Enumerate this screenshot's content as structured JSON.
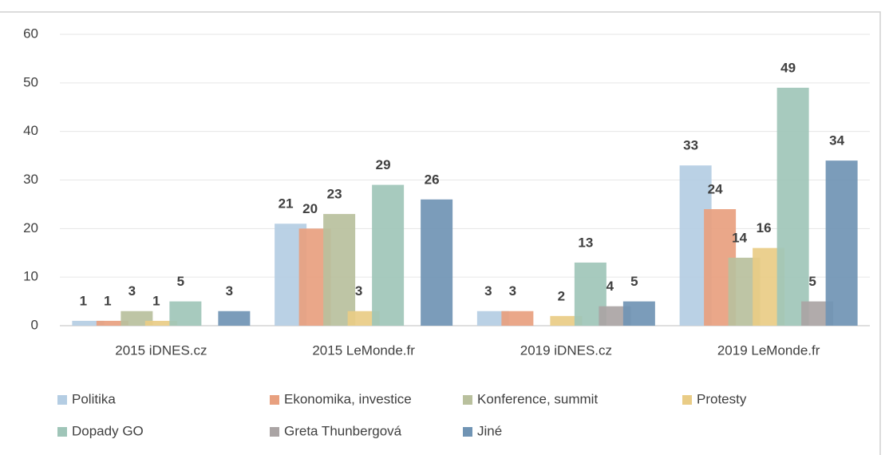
{
  "chart_data": {
    "type": "bar",
    "categories": [
      "2015 iDNES.cz",
      "2015 LeMonde.fr",
      "2019 iDNES.cz",
      "2019 LeMonde.fr"
    ],
    "series": [
      {
        "name": "Politika",
        "color": "#b4cde3",
        "values": [
          1,
          21,
          3,
          33
        ]
      },
      {
        "name": "Ekonomika, investice",
        "color": "#e8a07f",
        "values": [
          1,
          20,
          3,
          24
        ]
      },
      {
        "name": "Konference, summit",
        "color": "#b9c09d",
        "values": [
          3,
          23,
          null,
          14
        ]
      },
      {
        "name": "Protesty",
        "color": "#e9cc86",
        "values": [
          1,
          3,
          2,
          16
        ]
      },
      {
        "name": "Dopady GO",
        "color": "#9fc5b8",
        "values": [
          5,
          29,
          13,
          49
        ]
      },
      {
        "name": "Greta Thunbergová",
        "color": "#aaa4a4",
        "values": [
          null,
          null,
          4,
          5
        ]
      },
      {
        "name": "Jiné",
        "color": "#7094b4",
        "values": [
          3,
          26,
          5,
          34
        ]
      }
    ],
    "ylim": [
      0,
      60
    ],
    "yticks": [
      0,
      10,
      20,
      30,
      40,
      50,
      60
    ],
    "grid": true,
    "legend": "bottom"
  }
}
